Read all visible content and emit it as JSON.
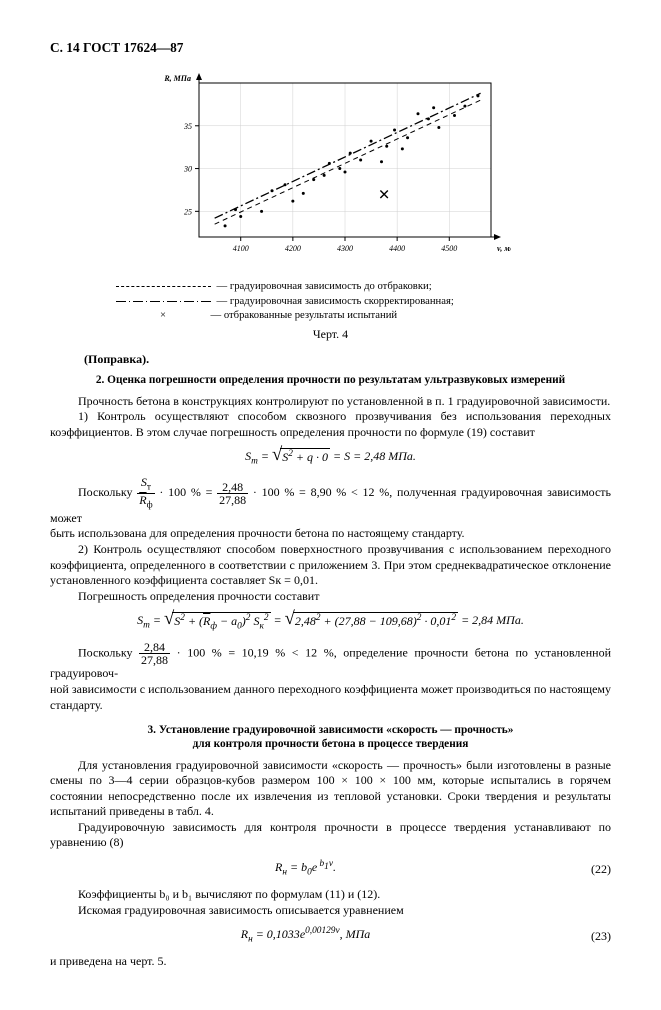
{
  "header": "С. 14 ГОСТ 17624—87",
  "chart": {
    "type": "scatter-with-lines",
    "y_label": "R, МПа",
    "x_label": "v, м/с",
    "ylim": [
      22,
      40
    ],
    "yticks": [
      25,
      30,
      35
    ],
    "xticks": [
      4100,
      4200,
      4300,
      4400,
      4500
    ],
    "background_color": "#ffffff",
    "axis_color": "#000000",
    "grid_color": "#d0d0d0",
    "tick_fontsize": 8,
    "label_fontsize": 8,
    "series": [
      {
        "name": "before-rejection",
        "kind": "line",
        "style": "dashed",
        "color": "#000000",
        "width": 1,
        "points": [
          [
            4050,
            23.5
          ],
          [
            4560,
            38.0
          ]
        ]
      },
      {
        "name": "corrected",
        "kind": "line",
        "style": "dashdot",
        "color": "#000000",
        "width": 1.3,
        "points": [
          [
            4050,
            24.2
          ],
          [
            4560,
            38.8
          ]
        ]
      },
      {
        "name": "samples",
        "kind": "scatter",
        "marker": "dot",
        "size": 3,
        "color": "#000000",
        "points": [
          [
            4070,
            23.3
          ],
          [
            4090,
            25.2
          ],
          [
            4100,
            24.4
          ],
          [
            4140,
            25.0
          ],
          [
            4160,
            27.4
          ],
          [
            4185,
            28.1
          ],
          [
            4200,
            26.2
          ],
          [
            4220,
            27.1
          ],
          [
            4240,
            28.7
          ],
          [
            4260,
            29.2
          ],
          [
            4270,
            30.6
          ],
          [
            4290,
            30.0
          ],
          [
            4300,
            29.6
          ],
          [
            4310,
            31.8
          ],
          [
            4330,
            31.0
          ],
          [
            4350,
            33.2
          ],
          [
            4370,
            30.8
          ],
          [
            4380,
            32.6
          ],
          [
            4395,
            34.5
          ],
          [
            4410,
            32.3
          ],
          [
            4420,
            33.6
          ],
          [
            4440,
            36.4
          ],
          [
            4460,
            35.8
          ],
          [
            4470,
            37.1
          ],
          [
            4480,
            34.8
          ],
          [
            4510,
            36.2
          ],
          [
            4530,
            37.3
          ],
          [
            4555,
            38.5
          ]
        ]
      },
      {
        "name": "rejected",
        "kind": "scatter",
        "marker": "x",
        "size": 6,
        "color": "#000000",
        "points": [
          [
            4375,
            27.0
          ]
        ]
      }
    ]
  },
  "legend": {
    "l1": "— градуировочная зависимость до отбраковки;",
    "l2": "— градуировочная зависимость скорректированная;",
    "l3": "— отбракованные результаты испытаний",
    "x_mark": "×"
  },
  "chart_caption": "Черт. 4",
  "popravka": "(Поправка).",
  "sec2_title": "2.  Оценка погрешности определения прочности по результатам ультразвуковых измерений",
  "p1": "Прочность бетона в конструкциях контролируют по установленной в п. 1 градуировочной зависимости.",
  "p2": "1) Контроль осуществляют способом сквозного прозвучивания без использования переходных коэффициентов. В этом случае погрешность определения прочности по формуле (19) составит",
  "f1_plain": "Sт = √(S² + q · 0) = S = 2,48  МПа.",
  "p3a": "Поскольку ",
  "p3_eq": " · 100 % = ",
  "p3_eq2": " · 100 % = 8,90 % < 12 %, полученная градуировочная зависимость может",
  "frac1_num": "Sт",
  "frac1_den": "R̄ф",
  "frac2_num": "2,48",
  "frac2_den": "27,88",
  "p4": "быть использована для определения прочности бетона по настоящему стандарту.",
  "p5": "2) Контроль осуществляют способом поверхностного прозвучивания с использованием переходного коэффициента, определенного в соответствии с приложением 3. При этом среднеквадратическое отклонение установленного коэффициента составляет Sк = 0,01.",
  "p6": "Погрешность определения прочности составит",
  "f2_plain": "Sт = √(S² + (R̄ф − a₀)² Sк²) = √(2,48² + (27,88 − 109,68)² · 0,01²) = 2,84  МПа.",
  "p7a": "Поскольку ",
  "frac3_num": "2,84",
  "frac3_den": "27,88",
  "p7b": " · 100 % = 10,19 % < 12 %, определение прочности бетона по установленной градуировоч-",
  "p8": "ной зависимости с использованием данного переходного коэффициента может производиться по настоящему стандарту.",
  "sec3_title1": "3.  Установление градуировочной зависимости «скорость — прочность»",
  "sec3_title2": "для контроля прочности бетона в процессе твердения",
  "p9": "Для установления градуировочной зависимости «скорость — прочность» были изготовлены в разные смены по 3—4 серии образцов-кубов размером 100 × 100 × 100 мм, которые испытались в горячем состоянии непосредственно после их извлечения из тепловой установки. Сроки твердения и результаты испытаний приведены в табл. 4.",
  "p10": "Градуировочную зависимость для контроля прочности в процессе твердения устанавливают по уравнению (8)",
  "f3_body": "Rн = b₀e^b₁v.",
  "f3_num": "(22)",
  "p11": "Коэффициенты b₀ и b₁ вычисляют по формулам (11) и (12).",
  "p12": "Искомая градуировочная зависимость описывается уравнением",
  "f4_body": "Rн = 0,1033e^0,00129v,  МПа",
  "f4_num": "(23)",
  "p13": "и приведена на черт. 5."
}
